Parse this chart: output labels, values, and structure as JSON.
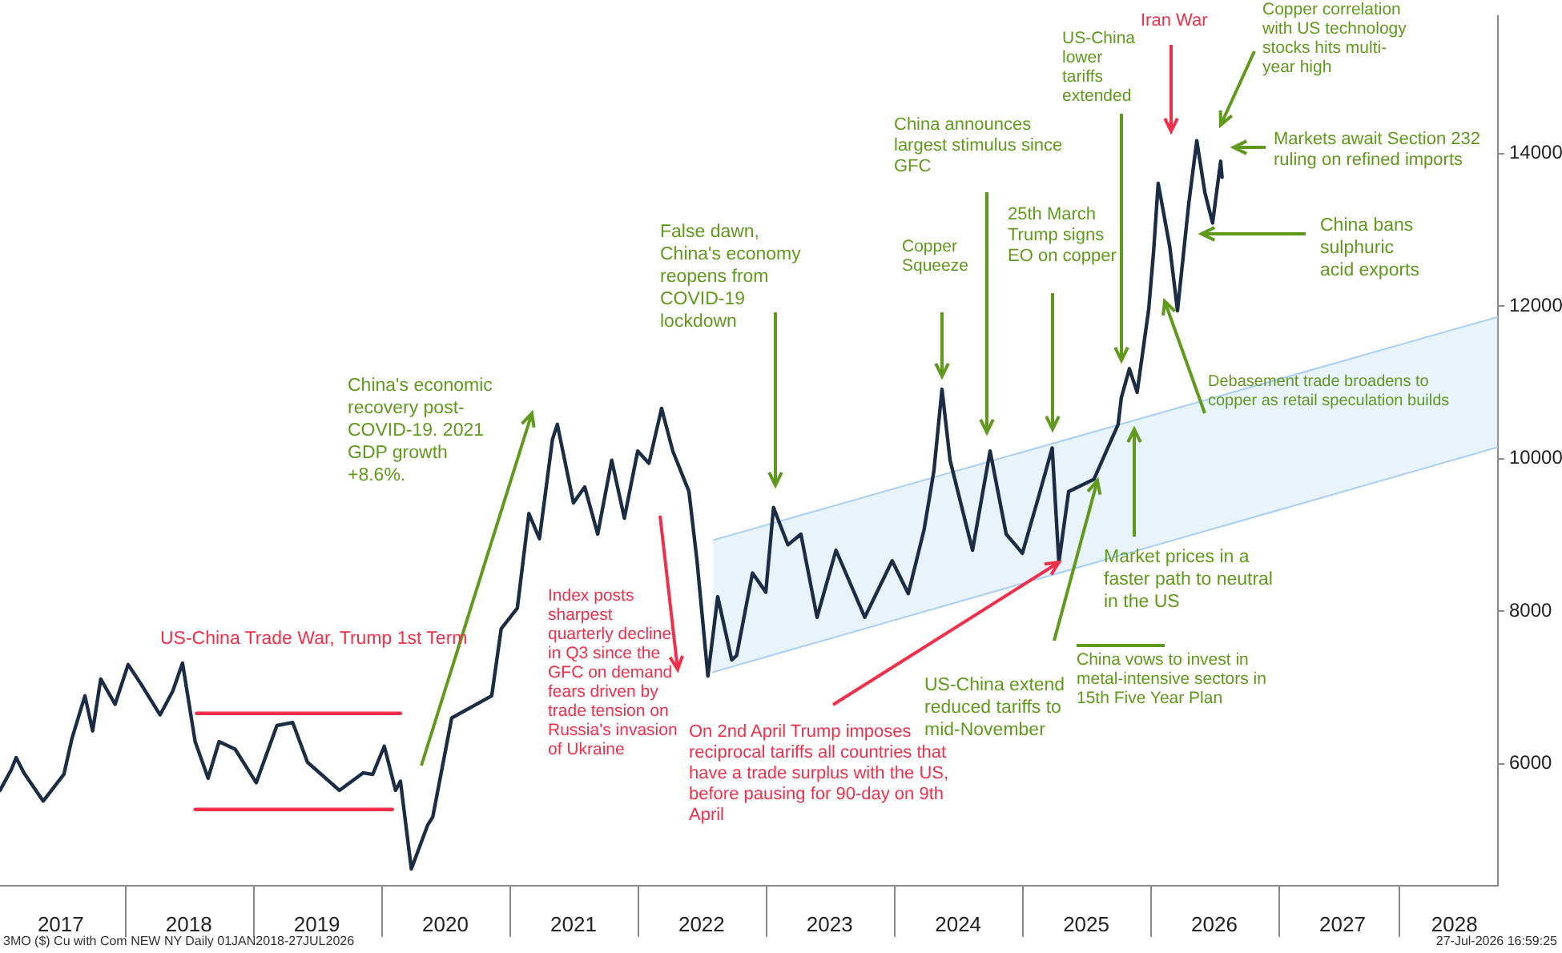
{
  "chart_data": {
    "type": "line",
    "xlim": [
      "2017-01-10",
      "2028-09-17"
    ],
    "xticks": [
      {
        "value": "2017-07-02",
        "label": "2017"
      },
      {
        "value": "2018-07-02",
        "label": "2018"
      },
      {
        "value": "2019-07-02",
        "label": "2019"
      },
      {
        "value": "2020-07-02",
        "label": "2020"
      },
      {
        "value": "2021-07-02",
        "label": "2021"
      },
      {
        "value": "2022-07-02",
        "label": "2022"
      },
      {
        "value": "2023-07-02",
        "label": "2023"
      },
      {
        "value": "2024-07-02",
        "label": "2024"
      },
      {
        "value": "2025-07-02",
        "label": "2025"
      },
      {
        "value": "2026-07-02",
        "label": "2026"
      },
      {
        "value": "2027-07-02",
        "label": "2027"
      },
      {
        "value": "2028-05-16",
        "label": "2028"
      }
    ],
    "ylim": [
      4400,
      15800
    ],
    "yticks": [
      6000,
      8000,
      10000,
      12000,
      14000
    ],
    "series": [
      {
        "color": "#a9cff5",
        "x": [
          "2022-08-03",
          "2028-09-17"
        ],
        "values": [
          7200,
          10150
        ]
      },
      {
        "type": "area",
        "color": "#a9cff5",
        "x": [
          "2022-08-03",
          "2028-09-17"
        ],
        "values": [
          8930,
          11860
        ]
      },
      {
        "type": "line",
        "color": "#f0304a",
        "x": [
          "2018-07-24",
          "2020-02-25"
        ],
        "values": [
          6660,
          6660
        ]
      },
      {
        "type": "line",
        "color": "#f0304a",
        "x": [
          "2018-07-20",
          "2020-02-02"
        ],
        "values": [
          5400,
          5400
        ]
      },
      {
        "color": "#1b2d45",
        "x": [
          "2017-01-10",
          "2017-02-11",
          "2017-02-25",
          "2017-03-19",
          "2017-05-13",
          "2017-07-11",
          "2017-08-03",
          "2017-09-09",
          "2017-10-01",
          "2017-10-24",
          "2017-12-04",
          "2018-01-10",
          "2018-02-15",
          "2018-04-11",
          "2018-05-17",
          "2018-06-14",
          "2018-07-20",
          "2018-08-26",
          "2018-09-26",
          "2018-11-11",
          "2019-01-10",
          "2019-03-10",
          "2019-04-24",
          "2019-06-05",
          "2019-09-04",
          "2019-11-11",
          "2019-12-08",
          "2020-01-10",
          "2020-02-11",
          "2020-02-25",
          "2020-03-27",
          "2020-05-13",
          "2020-05-27",
          "2020-07-20",
          "2020-11-11",
          "2020-12-08",
          "2021-01-23",
          "2021-02-25",
          "2021-03-27",
          "2021-05-03",
          "2021-05-17",
          "2021-07-02",
          "2021-08-03",
          "2021-09-09",
          "2021-10-19",
          "2021-11-24",
          "2022-01-01",
          "2022-02-02",
          "2022-03-10",
          "2022-04-11",
          "2022-05-27",
          "2022-06-19",
          "2022-07-20",
          "2022-08-17",
          "2022-09-26",
          "2022-10-10",
          "2022-11-24",
          "2023-01-01",
          "2023-01-23",
          "2023-03-05",
          "2023-04-11",
          "2023-05-27",
          "2023-07-20",
          "2023-10-10",
          "2023-12-27",
          "2024-02-11",
          "2024-03-27",
          "2024-04-24",
          "2024-05-17",
          "2024-06-09",
          "2024-08-12",
          "2024-10-01",
          "2024-11-16",
          "2025-01-01",
          "2025-02-15",
          "2025-03-27",
          "2025-04-15",
          "2025-05-13",
          "2025-07-24",
          "2025-10-01",
          "2025-10-10",
          "2025-11-02",
          "2025-11-24",
          "2025-12-27",
          "2026-01-10",
          "2026-01-23",
          "2026-02-25",
          "2026-03-19",
          "2026-04-20",
          "2026-05-13",
          "2026-06-05",
          "2026-06-27",
          "2026-07-20",
          "2026-07-24"
        ],
        "values": [
          5650,
          5920,
          6080,
          5880,
          5510,
          5860,
          6330,
          6890,
          6430,
          7110,
          6780,
          7300,
          7050,
          6640,
          6950,
          7320,
          6290,
          5810,
          6290,
          6190,
          5750,
          6500,
          6540,
          6020,
          5650,
          5880,
          5860,
          6230,
          5650,
          5770,
          4620,
          5200,
          5300,
          6600,
          6890,
          7770,
          8040,
          9280,
          8950,
          10250,
          10450,
          9420,
          9630,
          9010,
          9980,
          9220,
          10100,
          9940,
          10660,
          10100,
          9570,
          8660,
          7150,
          8190,
          7360,
          7420,
          8500,
          8250,
          9360,
          8870,
          9010,
          7920,
          8800,
          7920,
          8660,
          8230,
          9070,
          9840,
          10910,
          9980,
          8800,
          10100,
          9010,
          8760,
          9480,
          10140,
          8640,
          9570,
          9730,
          10450,
          10800,
          11180,
          10870,
          11960,
          12720,
          13610,
          12780,
          11940,
          13340,
          14170,
          13490,
          13090,
          13900,
          13690
        ]
      }
    ],
    "annotations": [
      "US-China Trade War, Trump 1st Term",
      "China's economic recovery post-COVID-19. 2021 GDP growth +8.6%.",
      "Index posts sharpest quarterly decline in Q3 since the GFC on demand fears driven by trade tension on Russia's invasion of Ukraine",
      "False dawn, China's economy reopens from COVID-19 lockdown",
      {
        "text": "On 2nd April Trump imposes reciprocal tariffs all countries that have a trade surplus with the US, before pausing for 90-day on 9th April",
        "x": "2025-04-15",
        "y": 8640
      },
      "Copper Squeeze",
      "China announces largest stimulus since GFC",
      "25th March Trump signs EO on copper",
      "US-China lower tariffs extended",
      "Iran War",
      "Copper correlation with US technology stocks hits multi-year high",
      "Markets await Section 232 ruling on refined imports",
      "China bans sulphuric acid exports",
      "Debasement trade broadens to copper as retail speculation builds",
      "Market prices in a faster path to neutral in the US",
      "US-China extend reduced tariffs to mid-November",
      "China vows to invest in metal-intensive sectors in 15th Five Year Plan",
      "3MO ($) Cu with Com NEW NY Daily 01JAN2018-27JUL2026",
      "27-Jul-2026 16:59:25"
    ]
  }
}
